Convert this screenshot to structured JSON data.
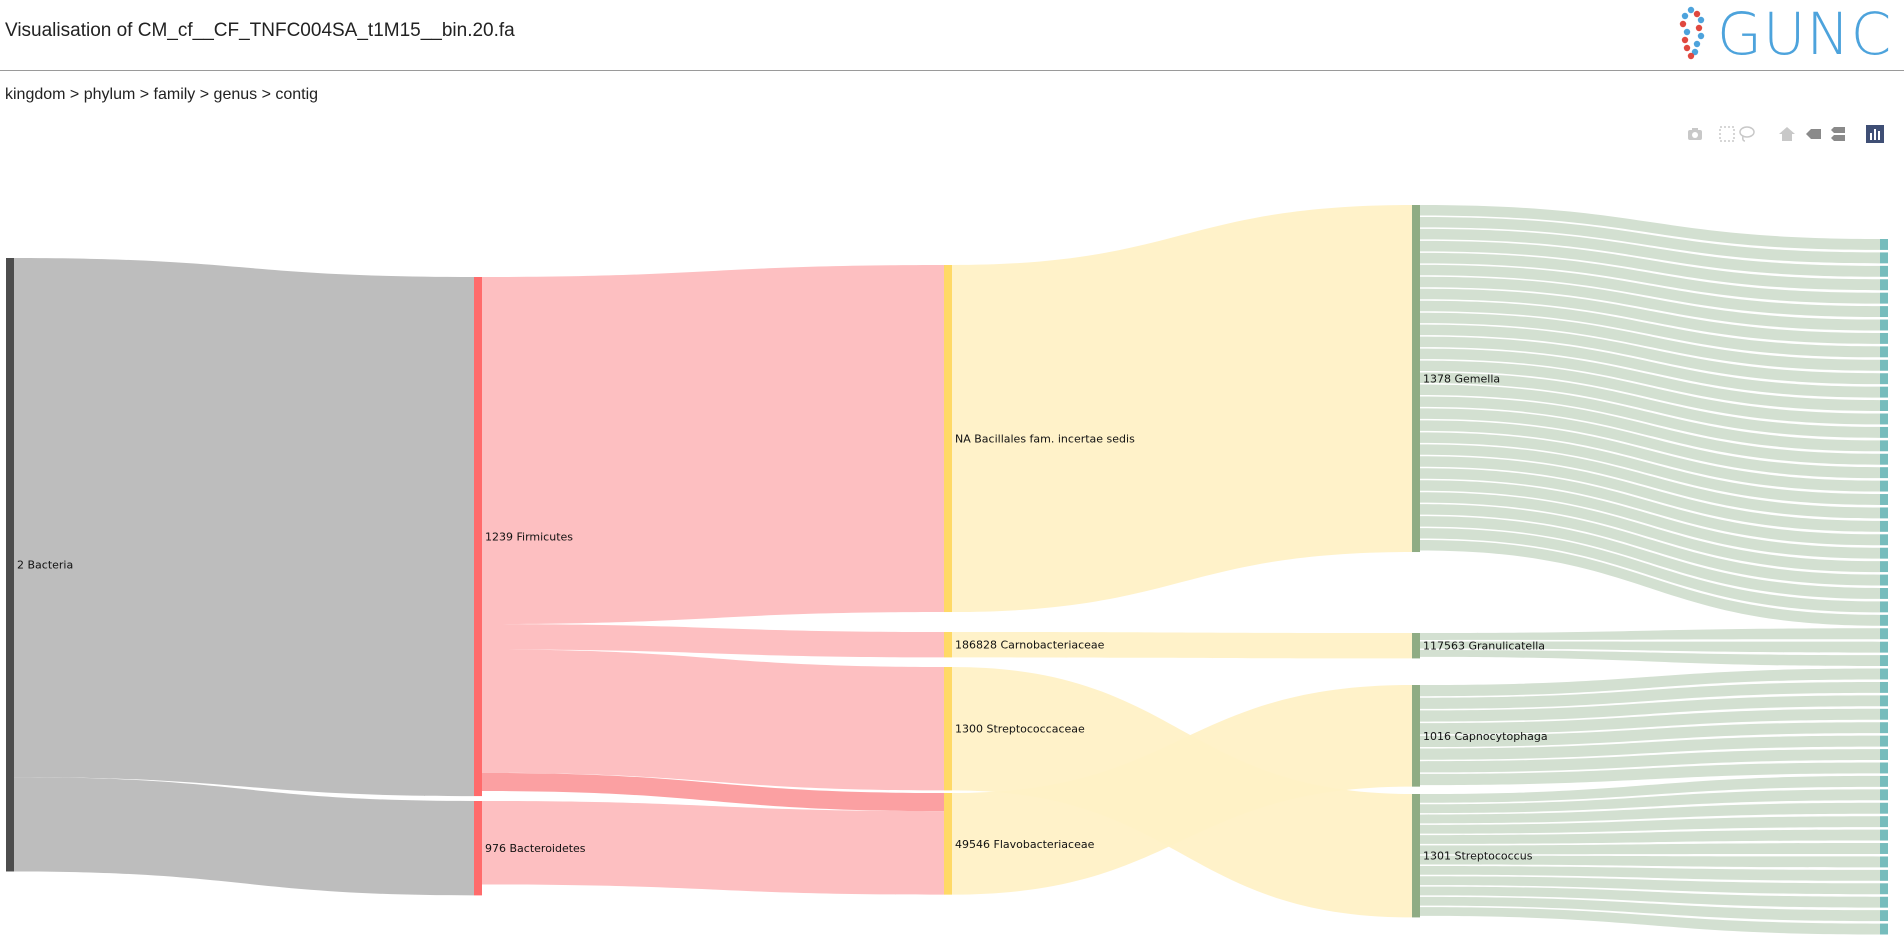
{
  "page": {
    "title": "Visualisation of CM_cf__CF_TNFC004SA_t1M15__bin.20.fa",
    "breadcrumb": "kingdom > phylum > family > genus > contig",
    "logo_text": "GUNC"
  },
  "modebar": [
    "camera-icon",
    "box-select-icon",
    "lasso-select-icon",
    "home-icon",
    "hover-closest-icon",
    "hover-compare-icon",
    "plotly-logo-icon"
  ],
  "colors": {
    "kingdom_node": "#4d4d4d",
    "kingdom_link": "#b9b9b9",
    "phylum_node": "#ff6b6b",
    "phylum_link": "#fdbcbe",
    "phylum_link_dark": "#fb9b9d",
    "family_node": "#ffd966",
    "family_link": "#fff1c6",
    "genus_node": "#8fac84",
    "genus_link": "#d3e0d1",
    "contig_node": "#76bcbc",
    "logo_dots": [
      "#e0483f",
      "#4da3dc"
    ]
  },
  "chart_data": {
    "type": "sankey",
    "levels": [
      "kingdom",
      "phylum",
      "family",
      "genus",
      "contig"
    ],
    "nodes": [
      {
        "id": "bacteria",
        "level": 0,
        "label": "2 Bacteria"
      },
      {
        "id": "firmicutes",
        "level": 1,
        "label": "1239 Firmicutes"
      },
      {
        "id": "bacteroidetes",
        "level": 1,
        "label": "976 Bacteroidetes"
      },
      {
        "id": "bacillales",
        "level": 2,
        "label": "NA Bacillales fam. incertae sedis"
      },
      {
        "id": "carnobacteriaceae",
        "level": 2,
        "label": "186828 Carnobacteriaceae"
      },
      {
        "id": "streptococcaceae",
        "level": 2,
        "label": "1300 Streptococcaceae"
      },
      {
        "id": "flavobacteriaceae",
        "level": 2,
        "label": "49546 Flavobacteriaceae"
      },
      {
        "id": "gemella",
        "level": 3,
        "label": "1378 Gemella"
      },
      {
        "id": "granulicatella",
        "level": 3,
        "label": "117563 Granulicatella"
      },
      {
        "id": "capnocytophaga",
        "level": 3,
        "label": "1016 Capnocytophaga"
      },
      {
        "id": "streptococcus",
        "level": 3,
        "label": "1301 Streptococcus"
      }
    ],
    "links": [
      {
        "source": "bacteria",
        "target": "firmicutes",
        "value": 715
      },
      {
        "source": "bacteria",
        "target": "bacteroidetes",
        "value": 130
      },
      {
        "source": "firmicutes",
        "target": "bacillales",
        "value": 478
      },
      {
        "source": "firmicutes",
        "target": "carnobacteriaceae",
        "value": 35
      },
      {
        "source": "firmicutes",
        "target": "streptococcaceae",
        "value": 170
      },
      {
        "source": "firmicutes",
        "target": "flavobacteriaceae",
        "value": 25
      },
      {
        "source": "bacteroidetes",
        "target": "flavobacteriaceae",
        "value": 115
      },
      {
        "source": "bacillales",
        "target": "gemella",
        "value": 478
      },
      {
        "source": "carnobacteriaceae",
        "target": "granulicatella",
        "value": 35
      },
      {
        "source": "flavobacteriaceae",
        "target": "capnocytophaga",
        "value": 140
      },
      {
        "source": "streptococcaceae",
        "target": "streptococcus",
        "value": 170
      }
    ],
    "contig_counts": {
      "gemella": 29,
      "granulicatella": 3,
      "capnocytophaga": 8,
      "streptococcus": 12
    }
  }
}
